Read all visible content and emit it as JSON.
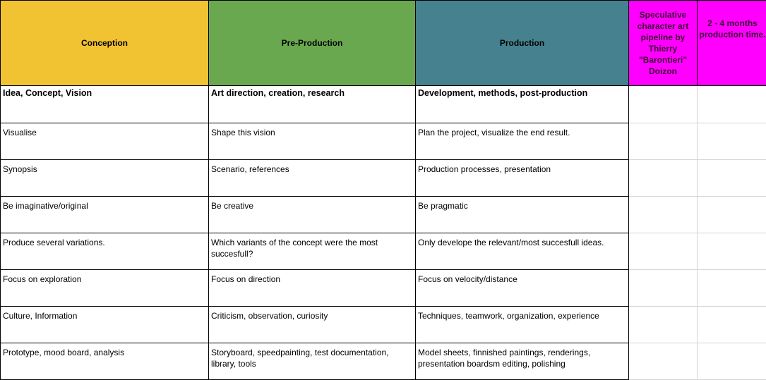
{
  "headers": {
    "conception": "Conception",
    "preproduction": "Pre-Production",
    "production": "Production",
    "note1": "Speculative character art pipeline by Thierry \"Barontieri\" Doizon",
    "note2": "2 - 4 months production time."
  },
  "subheaders": {
    "conception": "Idea, Concept, Vision",
    "preproduction": "Art direction, creation, research",
    "production": "Development, methods, post-production"
  },
  "rows": [
    {
      "conception": "Visualise",
      "preproduction": "Shape this vision",
      "production": "Plan the project, visualize the end result."
    },
    {
      "conception": "Synopsis",
      "preproduction": "Scenario, references",
      "production": "Production processes, presentation"
    },
    {
      "conception": "Be imaginative/original",
      "preproduction": "Be creative",
      "production": "Be pragmatic"
    },
    {
      "conception": "Produce several variations.",
      "preproduction": "Which variants of the concept were the most succesfull?",
      "production": "Only develope the relevant/most succesfull ideas."
    },
    {
      "conception": "Focus on exploration",
      "preproduction": "Focus on direction",
      "production": "Focus on velocity/distance"
    },
    {
      "conception": "Culture, Information",
      "preproduction": "Criticism, observation, curiosity",
      "production": "Techniques, teamwork, organization, experience"
    },
    {
      "conception": "Prototype, mood board, analysis",
      "preproduction": "Storyboard, speedpainting, test documentation, library, tools",
      "production": "Model sheets, finnished paintings, renderings, presentation boardsm editing, polishing"
    }
  ],
  "colors": {
    "conception": "#f1c232",
    "preproduction": "#6aa84f",
    "production": "#45818e",
    "note": "#ff00ff"
  }
}
